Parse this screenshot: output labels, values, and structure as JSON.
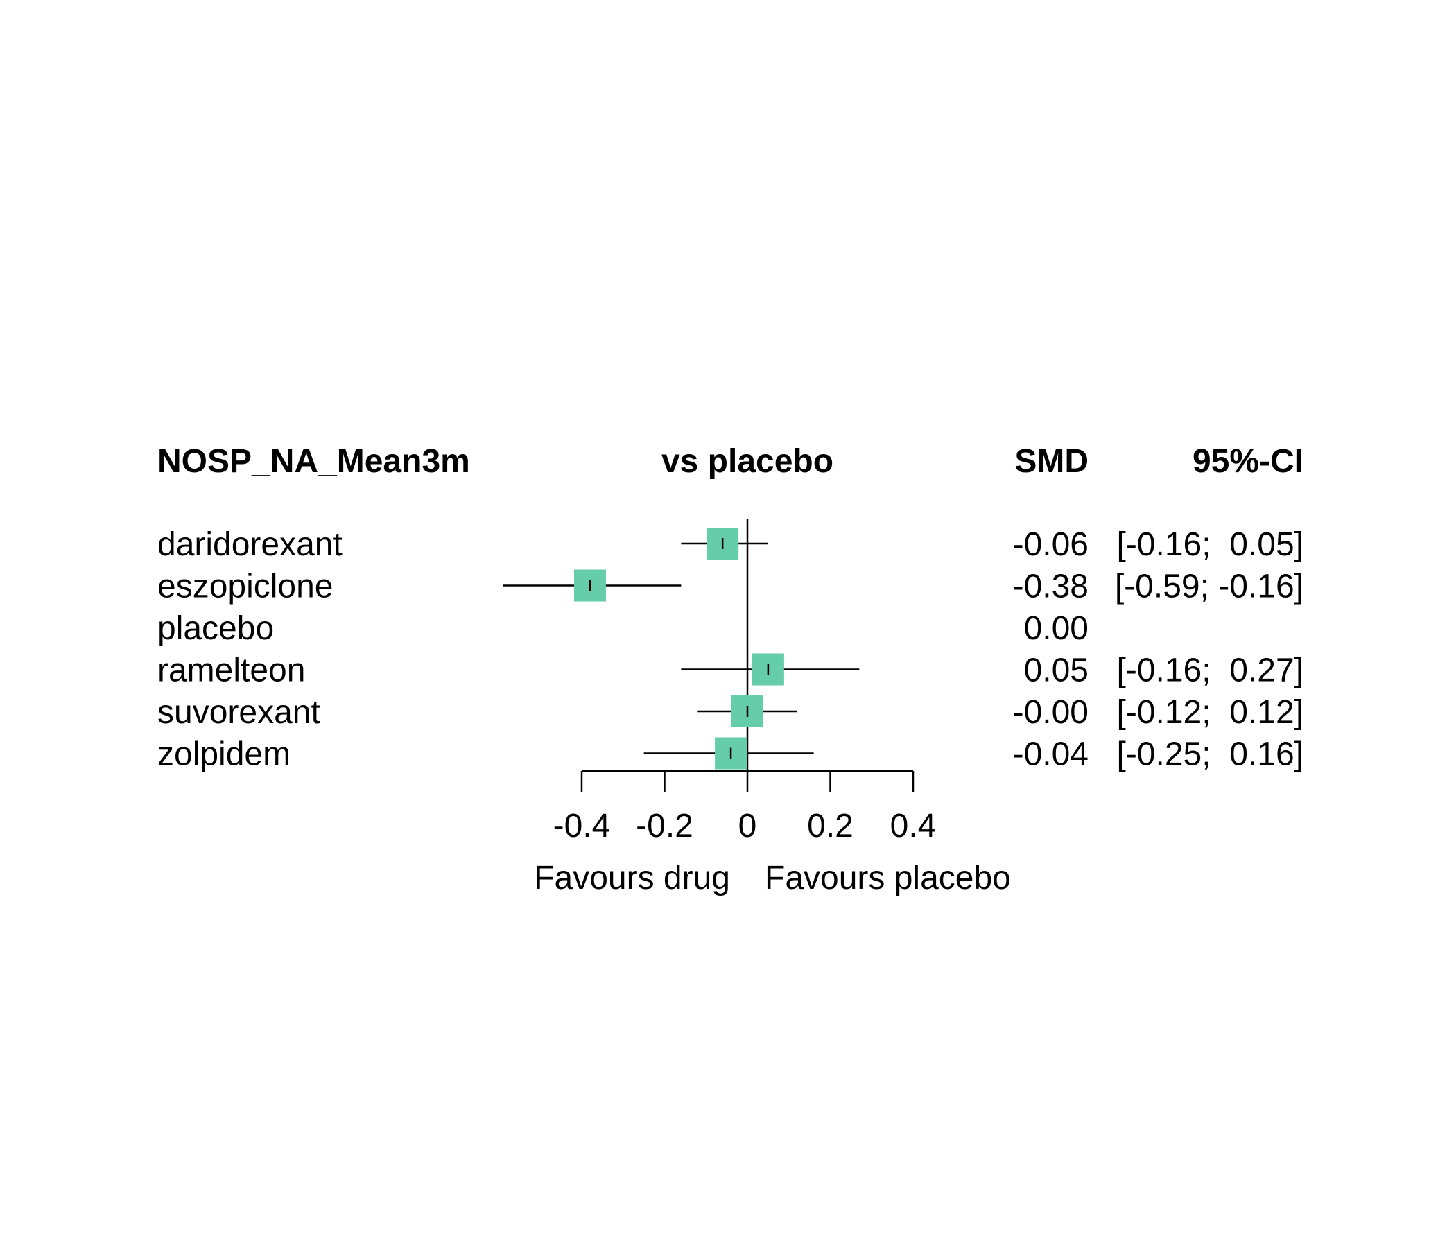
{
  "chart_data": {
    "type": "forest",
    "headers": {
      "outcome": "NOSP_NA_Mean3m",
      "comparison": "vs placebo",
      "effect": "SMD",
      "ci": "95%-CI"
    },
    "rows": [
      {
        "treatment": "daridorexant",
        "smd": -0.06,
        "lower": -0.16,
        "upper": 0.05,
        "smd_label": "-0.06",
        "ci_label": "[-0.16;  0.05]"
      },
      {
        "treatment": "eszopiclone",
        "smd": -0.38,
        "lower": -0.59,
        "upper": -0.16,
        "smd_label": "-0.38",
        "ci_label": "[-0.59; -0.16]"
      },
      {
        "treatment": "placebo",
        "smd": 0.0,
        "lower": null,
        "upper": null,
        "smd_label": "0.00",
        "ci_label": ""
      },
      {
        "treatment": "ramelteon",
        "smd": 0.05,
        "lower": -0.16,
        "upper": 0.27,
        "smd_label": "0.05",
        "ci_label": "[-0.16;  0.27]"
      },
      {
        "treatment": "suvorexant",
        "smd": -0.0,
        "lower": -0.12,
        "upper": 0.12,
        "smd_label": "-0.00",
        "ci_label": "[-0.12;  0.12]"
      },
      {
        "treatment": "zolpidem",
        "smd": -0.04,
        "lower": -0.25,
        "upper": 0.16,
        "smd_label": "-0.04",
        "ci_label": "[-0.25;  0.16]"
      }
    ],
    "xlim": [
      -0.4,
      0.4
    ],
    "xticks": [
      -0.4,
      -0.2,
      0,
      0.2,
      0.4
    ],
    "xtick_labels": [
      "-0.4",
      "-0.2",
      "0",
      "0.2",
      "0.4"
    ],
    "left_label": "Favours drug",
    "right_label": "Favours placebo",
    "box_color": "#66CDAA"
  }
}
